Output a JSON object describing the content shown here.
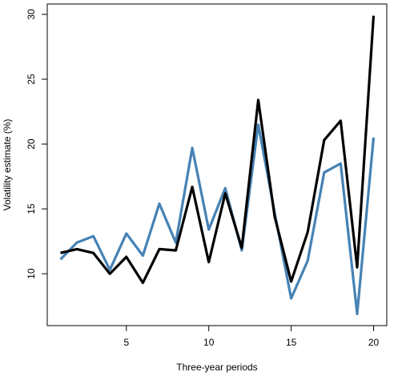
{
  "chart_data": {
    "type": "line",
    "title": "",
    "xlabel": "Three-year periods",
    "ylabel": "Volatility estimate (%)",
    "xlim": [
      0.2,
      20.8
    ],
    "ylim": [
      6.0,
      30.8
    ],
    "x_ticks": [
      5,
      10,
      15,
      20
    ],
    "y_ticks": [
      10,
      15,
      20,
      25,
      30
    ],
    "grid": false,
    "legend": "none",
    "x": [
      1,
      2,
      3,
      4,
      5,
      6,
      7,
      8,
      9,
      10,
      11,
      12,
      13,
      14,
      15,
      16,
      17,
      18,
      19,
      20
    ],
    "series": [
      {
        "color": "#4682b4",
        "values": [
          11.1,
          12.4,
          12.9,
          10.3,
          13.1,
          11.4,
          15.4,
          12.4,
          19.7,
          13.4,
          16.6,
          11.8,
          21.5,
          14.7,
          8.1,
          11.0,
          17.8,
          18.5,
          6.9,
          20.5
        ]
      },
      {
        "color": "#000000",
        "values": [
          11.6,
          11.9,
          11.6,
          10.0,
          11.3,
          9.3,
          11.9,
          11.8,
          16.7,
          10.9,
          16.2,
          12.0,
          23.4,
          14.4,
          9.4,
          13.2,
          20.3,
          21.8,
          10.5,
          29.9
        ]
      }
    ]
  }
}
